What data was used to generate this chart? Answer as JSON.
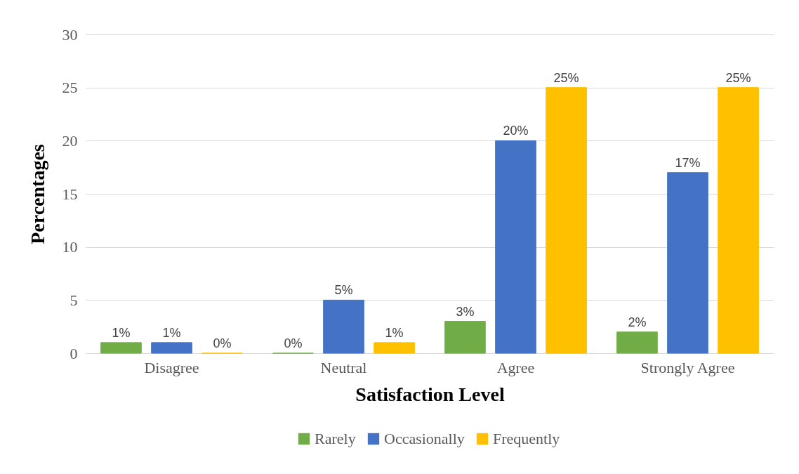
{
  "chart_data": {
    "type": "bar",
    "xlabel": "Satisfaction Level",
    "ylabel": "Percentages",
    "categories": [
      "Disagree",
      "Neutral",
      "Agree",
      "Strongly Agree"
    ],
    "series": [
      {
        "name": "Rarely",
        "color": "#70ad47",
        "values": [
          1,
          0,
          3,
          2
        ],
        "value_labels": [
          "1%",
          "0%",
          "3%",
          "2%"
        ]
      },
      {
        "name": "Occasionally",
        "color": "#4472c4",
        "values": [
          1,
          5,
          20,
          17
        ],
        "value_labels": [
          "1%",
          "5%",
          "20%",
          "17%"
        ]
      },
      {
        "name": "Frequently",
        "color": "#ffc000",
        "values": [
          0,
          1,
          25,
          25
        ],
        "value_labels": [
          "0%",
          "1%",
          "25%",
          "25%"
        ]
      }
    ],
    "ylim": [
      0,
      30
    ],
    "yticks": [
      0,
      5,
      10,
      15,
      20,
      25,
      30
    ],
    "grid": "y",
    "legend": "bottom"
  }
}
